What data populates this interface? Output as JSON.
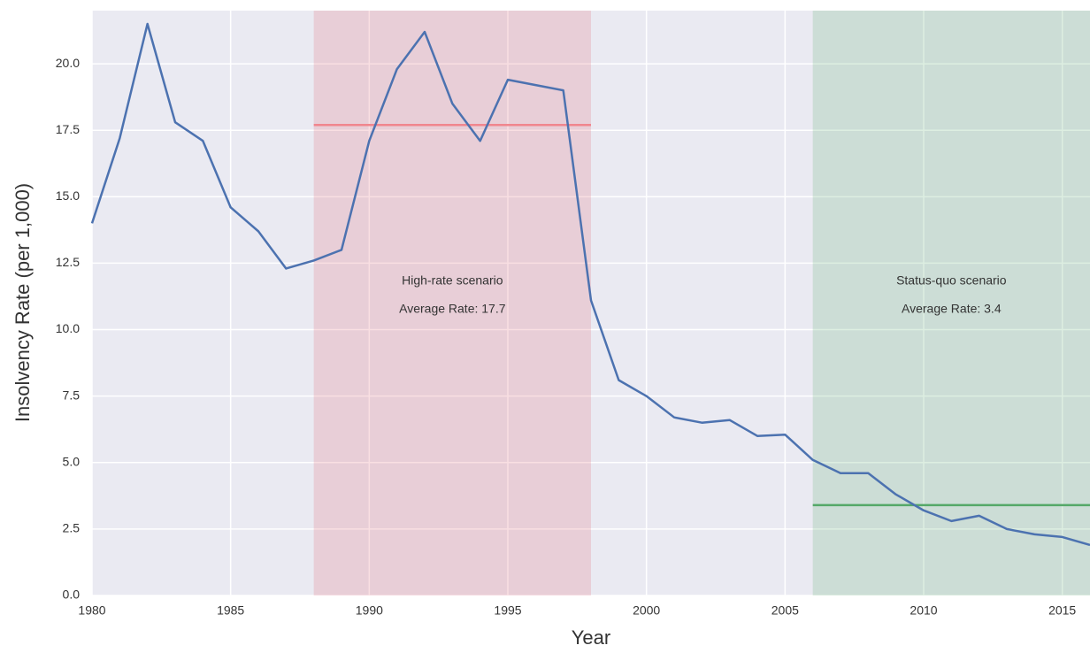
{
  "chart_data": {
    "type": "line",
    "xlabel": "Year",
    "ylabel": "Insolvency Rate (per 1,000)",
    "x": [
      1980,
      1981,
      1982,
      1983,
      1984,
      1985,
      1986,
      1987,
      1988,
      1989,
      1990,
      1991,
      1992,
      1993,
      1994,
      1995,
      1996,
      1997,
      1998,
      1999,
      2000,
      2001,
      2002,
      2003,
      2004,
      2005,
      2006,
      2007,
      2008,
      2009,
      2010,
      2011,
      2012,
      2013,
      2014,
      2015,
      2016
    ],
    "series": [
      {
        "color": "#4c72b0",
        "values": [
          14.0,
          17.2,
          21.5,
          17.8,
          17.1,
          14.6,
          13.7,
          12.3,
          12.6,
          13.0,
          17.1,
          19.8,
          21.2,
          18.5,
          17.1,
          19.4,
          19.2,
          19.0,
          11.1,
          8.1,
          7.5,
          6.7,
          6.5,
          6.6,
          6.0,
          6.05,
          5.1,
          4.6,
          4.6,
          3.8,
          3.2,
          2.8,
          3.0,
          2.5,
          2.3,
          2.2,
          1.9
        ]
      }
    ],
    "scenarios": [
      {
        "label": "High-rate scenario",
        "average_label": "Average Rate: 17.7",
        "average": 17.7,
        "start": 1988,
        "end": 1998,
        "span_color": "#e06070",
        "line_color": "#f0868e"
      },
      {
        "label": "Status-quo scenario",
        "average_label": "Average Rate: 3.4",
        "average": 3.4,
        "start": 2006,
        "end": 2016,
        "span_color": "#55a868",
        "line_color": "#55a868"
      }
    ],
    "xlim": [
      1980,
      2016
    ],
    "ylim": [
      0,
      22
    ],
    "xticks": [
      1980,
      1985,
      1990,
      1995,
      2000,
      2005,
      2010,
      2015
    ],
    "yticks": [
      {
        "value": 0,
        "label": "0.0"
      },
      2.5,
      {
        "value": 5,
        "label": "5.0"
      },
      7.5,
      {
        "value": 10,
        "label": "10.0"
      },
      12.5,
      {
        "value": 15,
        "label": "15.0"
      },
      17.5,
      {
        "value": 20,
        "label": "20.0"
      }
    ],
    "grid": true
  }
}
